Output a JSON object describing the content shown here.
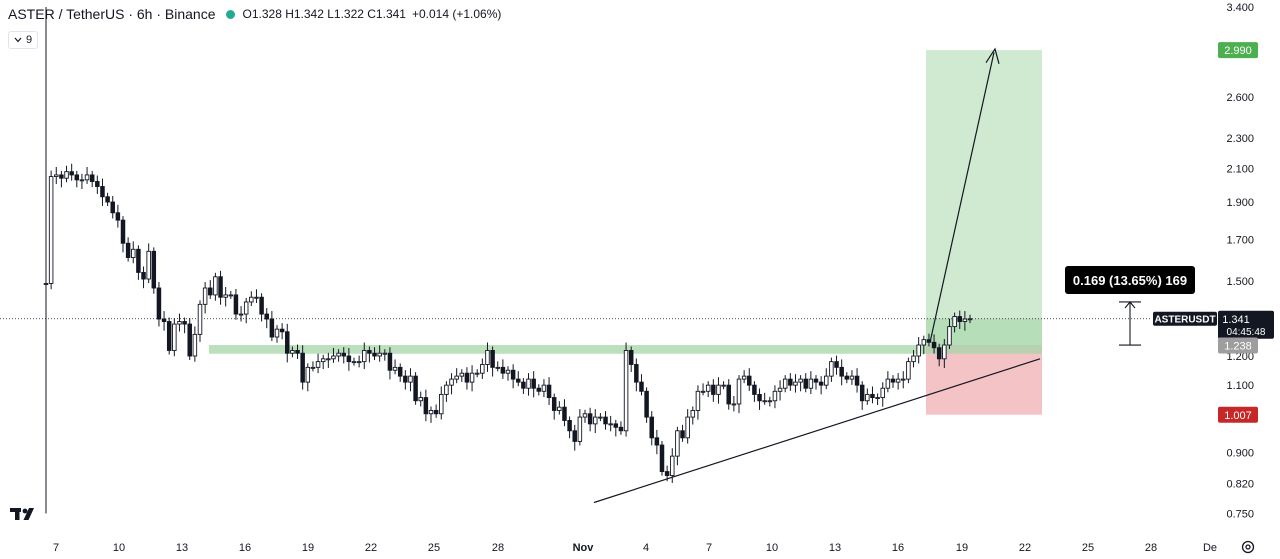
{
  "header": {
    "symbol": "ASTER / TetherUS · 6h · Binance",
    "ohlc": "O1.328  H1.342  L1.322  C1.341",
    "change": "+0.014 (+1.06%)",
    "status_color": "#22ab94"
  },
  "indicator_toggle": {
    "count": "9"
  },
  "price_axis": {
    "ticks": [
      "3.400",
      "2.600",
      "2.300",
      "2.100",
      "1.900",
      "1.700",
      "1.500",
      "1.200",
      "1.100",
      "0.900",
      "0.820",
      "0.750"
    ]
  },
  "time_axis": {
    "ticks": [
      "7",
      "10",
      "13",
      "16",
      "19",
      "22",
      "25",
      "28",
      "Nov",
      "4",
      "7",
      "10",
      "13",
      "16",
      "19",
      "22",
      "25",
      "28",
      "De"
    ]
  },
  "labels": {
    "target": "2.990",
    "symbol_tag": "ASTERUSDT",
    "last_price": "1.341",
    "countdown": "04:45:48",
    "entry": "1.238",
    "stop": "1.007",
    "measure": "0.169 (13.65%) 169"
  },
  "colors": {
    "up": "#ffffff",
    "down": "#131722",
    "target_zone": "#c8e6c9",
    "stop_zone": "#f2bcbf",
    "support_band": "#a5d6a7",
    "target_label": "#4caf50",
    "stop_label": "#c62828",
    "entry_label": "#9e9e9e"
  },
  "chart_data": {
    "type": "candlestick",
    "interval": "6h",
    "scale": "log",
    "ylim": [
      0.73,
      3.45
    ],
    "x": [
      "7",
      "10",
      "13",
      "16",
      "19",
      "22",
      "25",
      "28",
      "Nov",
      "4",
      "7",
      "10",
      "13",
      "16",
      "19",
      "22",
      "25",
      "28",
      "De"
    ],
    "close_series": [
      1.49,
      2.05,
      2.06,
      2.04,
      2.08,
      2.06,
      2.03,
      2.03,
      2.06,
      2.02,
      1.99,
      1.93,
      1.9,
      1.84,
      1.8,
      1.68,
      1.61,
      1.65,
      1.54,
      1.51,
      1.64,
      1.47,
      1.34,
      1.33,
      1.22,
      1.32,
      1.33,
      1.32,
      1.2,
      1.28,
      1.4,
      1.47,
      1.44,
      1.52,
      1.43,
      1.44,
      1.44,
      1.36,
      1.36,
      1.41,
      1.43,
      1.43,
      1.36,
      1.34,
      1.27,
      1.3,
      1.29,
      1.21,
      1.22,
      1.21,
      1.11,
      1.16,
      1.16,
      1.18,
      1.19,
      1.19,
      1.2,
      1.21,
      1.2,
      1.18,
      1.18,
      1.18,
      1.22,
      1.21,
      1.2,
      1.21,
      1.21,
      1.15,
      1.16,
      1.13,
      1.11,
      1.13,
      1.05,
      1.06,
      1.01,
      1.02,
      1.01,
      1.07,
      1.1,
      1.12,
      1.13,
      1.14,
      1.11,
      1.14,
      1.14,
      1.17,
      1.22,
      1.16,
      1.16,
      1.14,
      1.15,
      1.12,
      1.11,
      1.09,
      1.12,
      1.09,
      1.08,
      1.1,
      1.06,
      1.02,
      1.03,
      0.99,
      0.96,
      0.93,
      1.0,
      1.01,
      0.98,
      1.0,
      1.0,
      0.98,
      0.98,
      0.97,
      0.96,
      1.22,
      1.17,
      1.11,
      1.08,
      1.0,
      0.94,
      0.92,
      0.85,
      0.84,
      0.89,
      0.96,
      0.94,
      1.0,
      1.02,
      1.08,
      1.08,
      1.1,
      1.07,
      1.1,
      1.1,
      1.04,
      1.04,
      1.12,
      1.13,
      1.1,
      1.07,
      1.05,
      1.05,
      1.05,
      1.08,
      1.09,
      1.12,
      1.1,
      1.11,
      1.12,
      1.09,
      1.12,
      1.11,
      1.1,
      1.13,
      1.18,
      1.16,
      1.13,
      1.12,
      1.13,
      1.1,
      1.05,
      1.07,
      1.06,
      1.06,
      1.09,
      1.12,
      1.11,
      1.12,
      1.12,
      1.18,
      1.2,
      1.24,
      1.26,
      1.25,
      1.23,
      1.19,
      1.24,
      1.31,
      1.35,
      1.33,
      1.34,
      1.341
    ],
    "current_price": 1.341,
    "long_position": {
      "entry": 1.238,
      "target": 2.99,
      "stop": 1.007
    },
    "support_zone": [
      1.208,
      1.24
    ],
    "measure": {
      "label": "0.169 (13.65%) 169"
    }
  }
}
